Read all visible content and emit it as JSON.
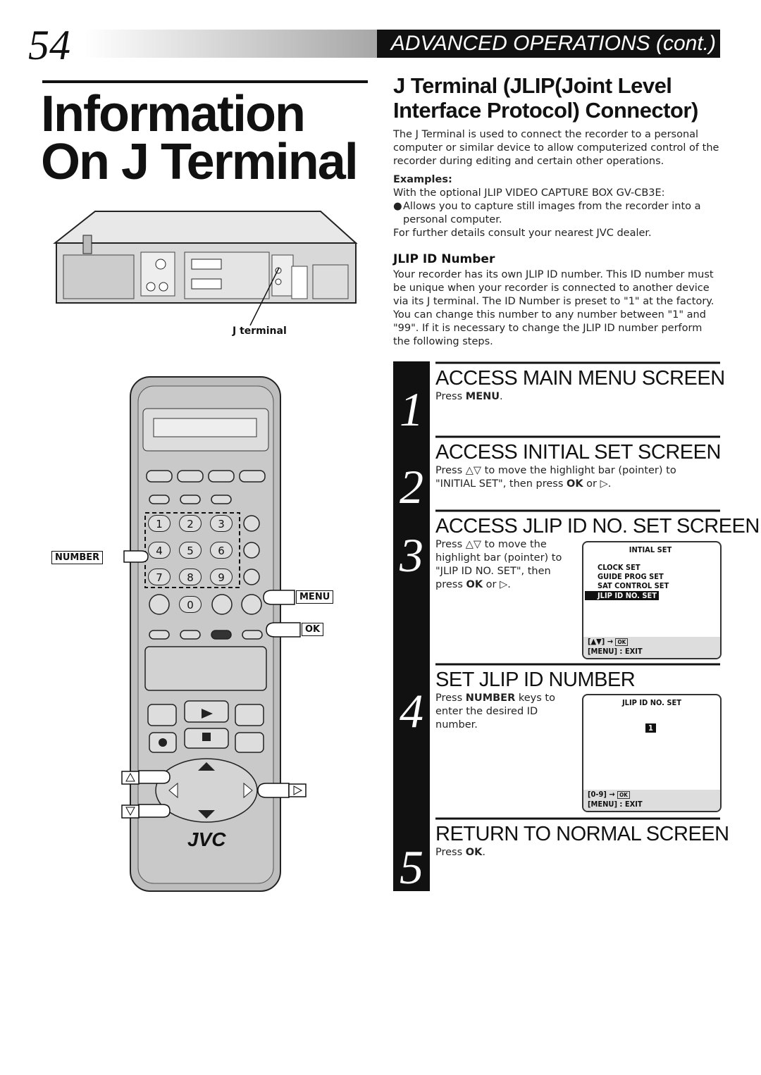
{
  "header": {
    "page_number": "54",
    "section": "ADVANCED OPERATIONS",
    "suffix": "(cont.)"
  },
  "title": {
    "line1": "Information",
    "line2": "On J Terminal"
  },
  "figure": {
    "vcr_label": "J terminal"
  },
  "remote": {
    "labels": [
      "NUMBER",
      "MENU",
      "OK"
    ],
    "keys": [
      "1",
      "2",
      "3",
      "4",
      "5",
      "6",
      "7",
      "8",
      "9",
      "0"
    ],
    "brand": "JVC"
  },
  "article": {
    "heading": [
      "J Terminal (JLIP(Joint Level",
      "Interface Protocol) Connector)"
    ],
    "intro": "The J Terminal is used to connect the recorder to a personal computer or similar device to allow computerized control of the recorder during editing and certain other operations.",
    "examples_heading": "Examples:",
    "examples_lines": [
      "With the optional JLIP VIDEO CAPTURE BOX GV-CB3E:",
      "Allows you to capture still images from the recorder into a personal computer.",
      "For further details consult your nearest JVC dealer."
    ],
    "jlip_heading": "JLIP ID Number",
    "jlip_text": "Your recorder has its own JLIP ID number. This ID number must be unique when your recorder is connected to another device via its J terminal. The ID Number is preset to \"1\" at the factory. You can change this number to any number between \"1\" and \"99\". If it is necessary to change the JLIP ID number perform the following steps."
  },
  "steps": [
    {
      "number": "1",
      "title": "ACCESS MAIN MENU SCREEN",
      "body": [
        {
          "text": "Press "
        },
        {
          "text": "MENU",
          "bold": true
        },
        {
          "text": "."
        }
      ]
    },
    {
      "number": "2",
      "title": "ACCESS INITIAL SET SCREEN",
      "body": [
        {
          "text": "Press △▽ to move the highlight bar (pointer) to \"INITIAL SET\", then press "
        },
        {
          "text": "OK",
          "bold": true
        },
        {
          "text": " or ▷."
        }
      ]
    },
    {
      "number": "3",
      "title": "ACCESS JLIP ID NO. SET SCREEN",
      "body": [
        {
          "text": "Press △▽ to move the highlight bar (pointer) to \"JLIP ID NO. SET\", then press "
        },
        {
          "text": "OK",
          "bold": true
        },
        {
          "text": " or ▷."
        }
      ]
    },
    {
      "number": "4",
      "title": "SET JLIP ID NUMBER",
      "body": [
        {
          "text": "Press "
        },
        {
          "text": "NUMBER",
          "bold": true
        },
        {
          "text": " keys to enter the desired ID number."
        }
      ]
    },
    {
      "number": "5",
      "title": "RETURN TO NORMAL SCREEN",
      "body": [
        {
          "text": "Press "
        },
        {
          "text": "OK",
          "bold": true
        },
        {
          "text": "."
        }
      ]
    }
  ],
  "screens": {
    "initial_set": {
      "title": "INTIAL SET",
      "items": [
        "CLOCK SET",
        "GUIDE PROG SET",
        "SAT CONTROL SET"
      ],
      "highlight": "JLIP ID NO. SET",
      "nav": "[▲▼] →",
      "ok": "OK",
      "exit": "[MENU] : EXIT"
    },
    "jlip_id": {
      "title": "JLIP ID NO. SET",
      "value": "1",
      "nav": "[0-9] →",
      "ok": "OK",
      "exit": "[MENU] : EXIT"
    }
  }
}
